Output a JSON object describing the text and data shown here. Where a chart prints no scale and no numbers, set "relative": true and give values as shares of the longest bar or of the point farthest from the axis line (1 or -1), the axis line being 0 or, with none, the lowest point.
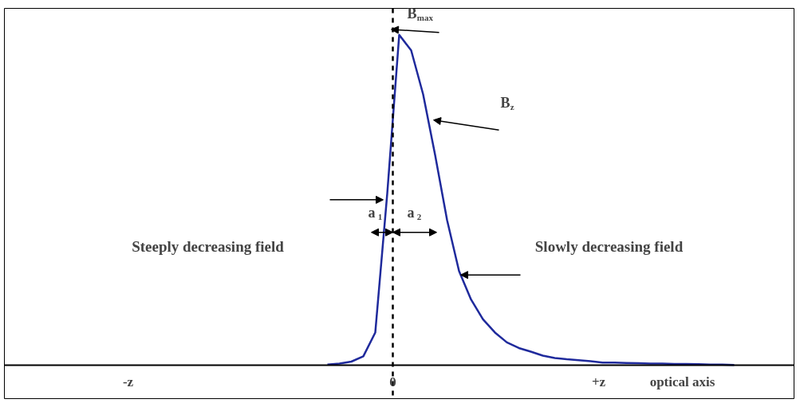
{
  "chart_data": {
    "type": "line",
    "relative": true,
    "xlabel": "optical axis",
    "categories": [
      null,
      null,
      null,
      null,
      null,
      null,
      null,
      null,
      null,
      null,
      null,
      null,
      null,
      null,
      null,
      null,
      null,
      null,
      null,
      null,
      null,
      null,
      null,
      null,
      null,
      null,
      null,
      null,
      null,
      null,
      null,
      null,
      null,
      null,
      null
    ],
    "series": [
      {
        "color": "#1f2a9c",
        "values": [
          0.003,
          0.006,
          0.012,
          0.028,
          0.1,
          0.52,
          1.0,
          0.953,
          0.82,
          0.637,
          0.44,
          0.286,
          0.2,
          0.14,
          0.1,
          0.07,
          0.053,
          0.042,
          0.03,
          0.023,
          0.019,
          0.016,
          0.013,
          0.009,
          0.009,
          0.008,
          0.007,
          0.006,
          0.006,
          0.005,
          0.005,
          0.004,
          0.003,
          0.003,
          0.002
        ]
      }
    ],
    "annotations": [
      "B$_{max}$",
      "B$_{z}$",
      "a$_{1}$",
      "a$_{2}$",
      "Steeply decreasing field",
      "Slowly decreasing field",
      "-z",
      "0",
      "+z"
    ],
    "grid": false,
    "line_style": "solid",
    "marker": "none"
  }
}
